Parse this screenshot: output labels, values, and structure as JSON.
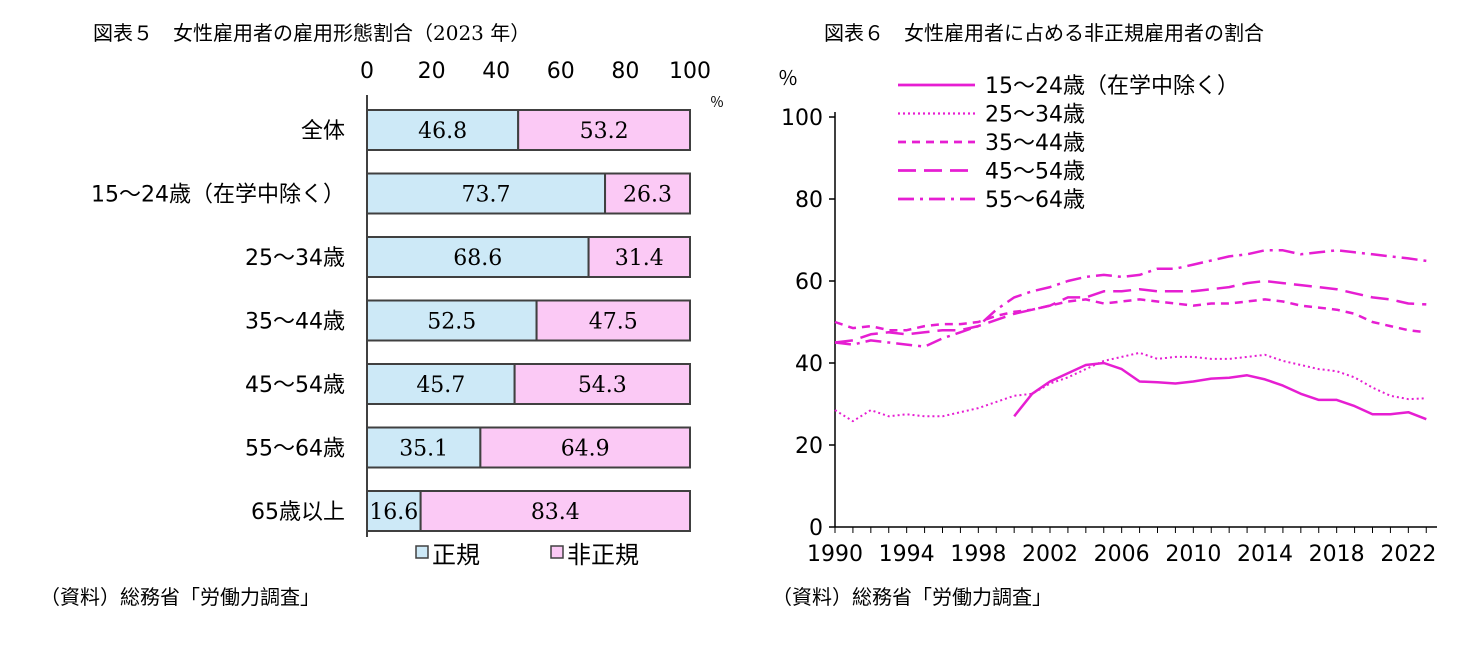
{
  "left_panel": {
    "title": "図表５　女性雇用者の雇用形態割合（2023 年）",
    "source": "（資料）総務省「労働力調査」",
    "unit": "％"
  },
  "right_panel": {
    "title": "図表６　女性雇用者に占める非正規雇用者の割合",
    "source": "（資料）総務省「労働力調査」",
    "unit": "％"
  },
  "chart_data": [
    {
      "type": "bar",
      "stacked": true,
      "orientation": "horizontal",
      "title": "図表５　女性雇用者の雇用形態割合（2023 年）",
      "xlim": [
        0,
        100
      ],
      "xticks": [
        "0",
        "20",
        "40",
        "60",
        "80",
        "100"
      ],
      "x_unit": "％",
      "categories": [
        "全体",
        "15～24歳（在学中除く）",
        "25～34歳",
        "35～44歳",
        "45～54歳",
        "55～64歳",
        "65歳以上"
      ],
      "series": [
        {
          "name": "正規",
          "color": "#cde9f7",
          "values": [
            46.8,
            73.7,
            68.6,
            52.5,
            45.7,
            35.1,
            16.6
          ],
          "labels": [
            "46.8",
            "73.7",
            "68.6",
            "52.5",
            "45.7",
            "35.1",
            "16.6"
          ]
        },
        {
          "name": "非正規",
          "color": "#fbc9f5",
          "values": [
            53.2,
            26.3,
            31.4,
            47.5,
            54.3,
            64.9,
            83.4
          ],
          "labels": [
            "53.2",
            "26.3",
            "31.4",
            "47.5",
            "54.3",
            "64.9",
            "83.4"
          ]
        }
      ],
      "legend_position": "bottom",
      "grid": false
    },
    {
      "type": "line",
      "title": "図表６　女性雇用者に占める非正規雇用者の割合",
      "xlim": [
        1990,
        2023
      ],
      "ylim": [
        0,
        100
      ],
      "xticks": [
        "1990",
        "1994",
        "1998",
        "2002",
        "2006",
        "2010",
        "2014",
        "2018",
        "2022"
      ],
      "yticks": [
        "0",
        "20",
        "40",
        "60",
        "80",
        "100"
      ],
      "y_unit": "％",
      "line_color": "#e61ed2",
      "legend_position": "top-left",
      "grid": false,
      "series": [
        {
          "name": "15～24歳（在学中除く）",
          "dash": "solid",
          "x": [
            2000,
            2001,
            2002,
            2003,
            2004,
            2005,
            2006,
            2007,
            2008,
            2009,
            2010,
            2011,
            2012,
            2013,
            2014,
            2015,
            2016,
            2017,
            2018,
            2019,
            2020,
            2021,
            2022,
            2023
          ],
          "y": [
            27,
            32.5,
            35.5,
            37.5,
            39.5,
            40,
            38.5,
            35.5,
            35.3,
            35,
            35.5,
            36.2,
            36.4,
            37,
            36,
            34.5,
            32.5,
            31,
            31,
            29.5,
            27.5,
            27.5,
            28,
            26.3
          ]
        },
        {
          "name": "25～34歳",
          "dash": "dotted",
          "x": [
            1990,
            1991,
            1992,
            1993,
            1994,
            1995,
            1996,
            1997,
            1998,
            1999,
            2000,
            2001,
            2002,
            2003,
            2004,
            2005,
            2006,
            2007,
            2008,
            2009,
            2010,
            2011,
            2012,
            2013,
            2014,
            2015,
            2016,
            2017,
            2018,
            2019,
            2020,
            2021,
            2022,
            2023
          ],
          "y": [
            28.5,
            25.8,
            28.5,
            27,
            27.5,
            27,
            27,
            28,
            29,
            30.5,
            32,
            32.5,
            35,
            36.5,
            38.5,
            40.5,
            41.5,
            42.5,
            41,
            41.5,
            41.5,
            41,
            41,
            41.5,
            42,
            40.5,
            39.5,
            38.5,
            38,
            36.5,
            34,
            32,
            31.2,
            31.4
          ]
        },
        {
          "name": "35～44歳",
          "dash": "short-dash",
          "x": [
            1990,
            1991,
            1992,
            1993,
            1994,
            1995,
            1996,
            1997,
            1998,
            1999,
            2000,
            2001,
            2002,
            2003,
            2004,
            2005,
            2006,
            2007,
            2008,
            2009,
            2010,
            2011,
            2012,
            2013,
            2014,
            2015,
            2016,
            2017,
            2018,
            2019,
            2020,
            2021,
            2022,
            2023
          ],
          "y": [
            50,
            48.5,
            49,
            48,
            48,
            49,
            49.5,
            49.5,
            50,
            51.5,
            52.5,
            53,
            54,
            55,
            55.5,
            54.5,
            55,
            55.5,
            55,
            54.5,
            54,
            54.5,
            54.5,
            55,
            55.5,
            55,
            54,
            53.5,
            53,
            52,
            50,
            49,
            48,
            47.5
          ]
        },
        {
          "name": "45～54歳",
          "dash": "long-dash",
          "x": [
            1990,
            1991,
            1992,
            1993,
            1994,
            1995,
            1996,
            1997,
            1998,
            1999,
            2000,
            2001,
            2002,
            2003,
            2004,
            2005,
            2006,
            2007,
            2008,
            2009,
            2010,
            2011,
            2012,
            2013,
            2014,
            2015,
            2016,
            2017,
            2018,
            2019,
            2020,
            2021,
            2022,
            2023
          ],
          "y": [
            45,
            45.5,
            47,
            47.5,
            47,
            47.5,
            48,
            48,
            49,
            50.5,
            52,
            53,
            54,
            56,
            56,
            57.5,
            57.5,
            58,
            57.5,
            57.5,
            57.5,
            58,
            58.5,
            59.5,
            60,
            59.5,
            59,
            58.5,
            58,
            57,
            56,
            55.5,
            54.5,
            54.3
          ]
        },
        {
          "name": "55～64歳",
          "dash": "dash-dot",
          "x": [
            1990,
            1991,
            1992,
            1993,
            1994,
            1995,
            1996,
            1997,
            1998,
            1999,
            2000,
            2001,
            2002,
            2003,
            2004,
            2005,
            2006,
            2007,
            2008,
            2009,
            2010,
            2011,
            2012,
            2013,
            2014,
            2015,
            2016,
            2017,
            2018,
            2019,
            2020,
            2021,
            2022,
            2023
          ],
          "y": [
            45,
            44.5,
            45.5,
            45,
            44.5,
            44,
            46,
            47.5,
            49,
            53,
            56,
            57.5,
            58.5,
            60,
            61,
            61.5,
            61,
            61.5,
            63,
            63,
            64,
            65,
            66,
            66.5,
            67.5,
            67.5,
            66.5,
            67,
            67.5,
            67,
            66.5,
            66,
            65.5,
            64.9
          ]
        }
      ]
    }
  ]
}
